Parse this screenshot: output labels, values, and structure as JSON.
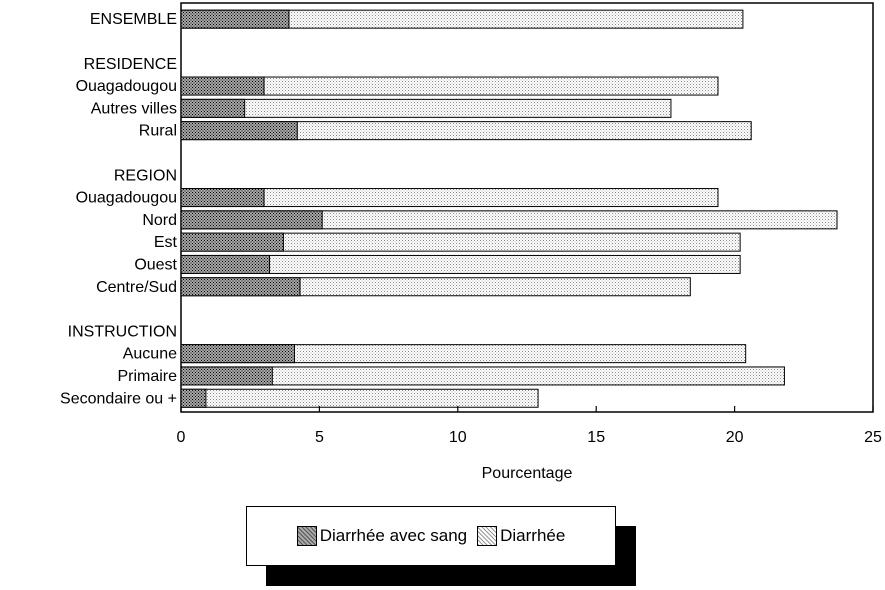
{
  "chart_data": {
    "type": "bar",
    "orientation": "horizontal",
    "stacked": true,
    "xlabel": "Pourcentage",
    "xlim": [
      0,
      25
    ],
    "xticks": [
      0,
      5,
      10,
      15,
      20,
      25
    ],
    "grid": false,
    "legend_placement": "bottom-center",
    "colors": {
      "avec_sang": "#7a7a7a",
      "diarrhee": "#dcdcdc"
    },
    "groups": [
      {
        "header": "ENSEMBLE",
        "header_is_row": true
      },
      {
        "header": "RESIDENCE",
        "header_is_row": false
      },
      {
        "header": "REGION",
        "header_is_row": false
      },
      {
        "header": "INSTRUCTION",
        "header_is_row": false
      }
    ],
    "rows": [
      {
        "label": "ENSEMBLE",
        "group": 0,
        "avec_sang": 3.9,
        "total": 20.3
      },
      {
        "label": "Ouagadougou",
        "group": 1,
        "avec_sang": 3.0,
        "total": 19.4
      },
      {
        "label": "Autres villes",
        "group": 1,
        "avec_sang": 2.3,
        "total": 17.7
      },
      {
        "label": "Rural",
        "group": 1,
        "avec_sang": 4.2,
        "total": 20.6
      },
      {
        "label": "Ouagadougou",
        "group": 2,
        "avec_sang": 3.0,
        "total": 19.4
      },
      {
        "label": "Nord",
        "group": 2,
        "avec_sang": 5.1,
        "total": 23.7
      },
      {
        "label": "Est",
        "group": 2,
        "avec_sang": 3.7,
        "total": 20.2
      },
      {
        "label": "Ouest",
        "group": 2,
        "avec_sang": 3.2,
        "total": 20.2
      },
      {
        "label": "Centre/Sud",
        "group": 2,
        "avec_sang": 4.3,
        "total": 18.4
      },
      {
        "label": "Aucune",
        "group": 3,
        "avec_sang": 4.1,
        "total": 20.4
      },
      {
        "label": "Primaire",
        "group": 3,
        "avec_sang": 3.3,
        "total": 21.8
      },
      {
        "label": "Secondaire ou +",
        "group": 3,
        "avec_sang": 0.9,
        "total": 12.9
      }
    ],
    "series": [
      {
        "name": "Diarrhée avec sang"
      },
      {
        "name": "Diarrhée"
      }
    ]
  }
}
